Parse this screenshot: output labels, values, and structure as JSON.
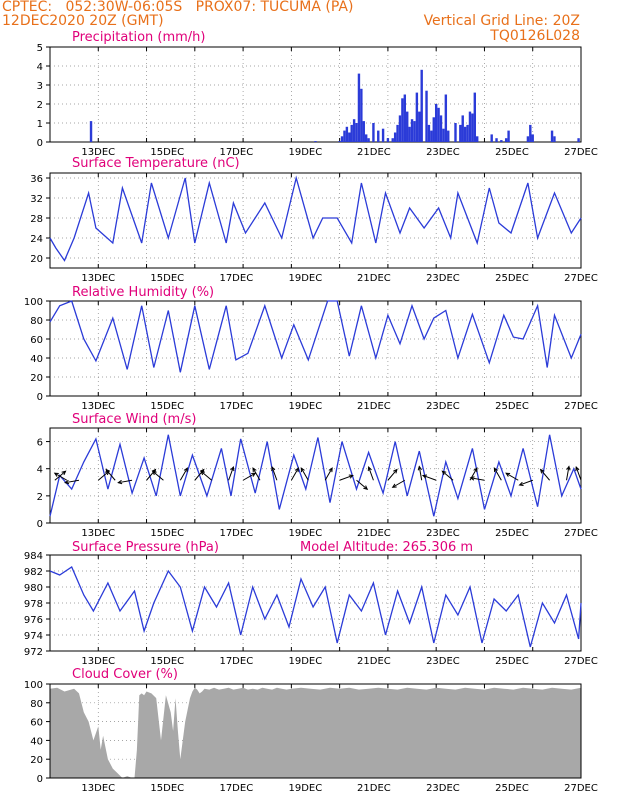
{
  "header": {
    "line1_left": "CPTEC:   052:30W-06:05S   PROX07: TUCUMA (PA)",
    "line2_left": "12DEC2020 20Z (GMT)",
    "line2_right": "Vertical Grid Line: 20Z",
    "line3_right": "TQ0126L028"
  },
  "x_tick_labels": [
    "13DEC",
    "15DEC",
    "17DEC",
    "19DEC",
    "21DEC",
    "23DEC",
    "25DEC",
    "27DEC"
  ],
  "colors": {
    "header": "#e8701a",
    "panel_title": "#e0007a",
    "series": "#2b3bd8",
    "cloud": "#a8a8a8",
    "wind_arrow": "#000000"
  },
  "chart_data": [
    {
      "id": "precip",
      "type": "bar",
      "title": "Precipitation (mm/h)",
      "ylim": [
        0,
        5
      ],
      "yticks": [
        0,
        1,
        2,
        3,
        4,
        5
      ],
      "grid": true,
      "x": [
        0.85,
        5.5,
        6.0,
        6.05,
        6.1,
        6.15,
        6.2,
        6.25,
        6.3,
        6.35,
        6.4,
        6.45,
        6.5,
        6.55,
        6.6,
        6.7,
        6.8,
        6.9,
        7.0,
        7.1,
        7.15,
        7.2,
        7.25,
        7.3,
        7.35,
        7.4,
        7.45,
        7.5,
        7.55,
        7.6,
        7.65,
        7.7,
        7.8,
        7.85,
        7.9,
        7.95,
        8.0,
        8.05,
        8.1,
        8.15,
        8.2,
        8.25,
        8.4,
        8.5,
        8.55,
        8.6,
        8.65,
        8.7,
        8.75,
        8.8,
        8.85,
        9.15,
        9.25,
        9.35,
        9.45,
        9.5,
        9.9,
        9.95,
        10.0,
        10.4,
        10.45,
        10.95
      ],
      "values": [
        1.1,
        0.05,
        0.05,
        0.3,
        0.6,
        0.8,
        0.5,
        0.9,
        1.2,
        1.0,
        3.6,
        2.8,
        1.1,
        0.4,
        0.2,
        1.0,
        0.6,
        0.7,
        0.2,
        0.2,
        0.5,
        0.9,
        1.4,
        2.3,
        2.5,
        1.6,
        0.8,
        1.2,
        1.1,
        2.6,
        1.6,
        3.8,
        2.7,
        0.9,
        0.6,
        1.3,
        2.0,
        1.8,
        1.4,
        0.7,
        2.5,
        0.6,
        1.0,
        0.9,
        1.4,
        0.8,
        0.9,
        1.6,
        1.5,
        2.6,
        0.3,
        0.4,
        0.2,
        0.1,
        0.2,
        0.6,
        0.3,
        0.9,
        0.4,
        0.6,
        0.3,
        0.2
      ]
    },
    {
      "id": "temp",
      "type": "line",
      "title": "Surface Temperature (nC)",
      "ylim": [
        18,
        37
      ],
      "yticks": [
        20,
        24,
        28,
        32,
        36
      ],
      "grid": true,
      "x": [
        0,
        0.12,
        0.3,
        0.5,
        0.8,
        0.95,
        1.3,
        1.5,
        1.9,
        2.1,
        2.45,
        2.8,
        3.0,
        3.3,
        3.65,
        3.8,
        4.05,
        4.45,
        4.8,
        5.1,
        5.45,
        5.65,
        5.95,
        6.25,
        6.45,
        6.75,
        6.95,
        7.25,
        7.45,
        7.75,
        8.05,
        8.3,
        8.45,
        8.85,
        9.1,
        9.3,
        9.55,
        9.9,
        10.1,
        10.45,
        10.8,
        11.0
      ],
      "values": [
        24,
        22,
        19.5,
        24,
        33,
        26,
        23,
        34,
        23,
        35,
        24,
        36,
        23,
        35,
        23,
        31,
        25,
        31,
        24,
        36,
        24,
        28,
        28,
        23,
        35,
        23,
        33,
        25,
        30,
        26,
        30,
        24,
        33,
        23,
        34,
        27,
        25,
        35,
        24,
        33,
        25,
        28
      ]
    },
    {
      "id": "rh",
      "type": "line",
      "title": "Relative Humidity (%)",
      "ylim": [
        0,
        100
      ],
      "yticks": [
        0,
        20,
        40,
        60,
        80,
        100
      ],
      "grid": true,
      "x": [
        0,
        0.2,
        0.45,
        0.7,
        0.95,
        1.3,
        1.6,
        1.9,
        2.15,
        2.45,
        2.7,
        3.0,
        3.3,
        3.65,
        3.85,
        4.1,
        4.45,
        4.8,
        5.05,
        5.35,
        5.75,
        5.95,
        6.2,
        6.45,
        6.75,
        7.0,
        7.25,
        7.5,
        7.75,
        7.95,
        8.2,
        8.45,
        8.75,
        9.1,
        9.4,
        9.6,
        9.8,
        10.1,
        10.3,
        10.45,
        10.8,
        11.0
      ],
      "values": [
        78,
        95,
        100,
        60,
        37,
        82,
        28,
        95,
        30,
        90,
        25,
        95,
        28,
        95,
        38,
        45,
        95,
        40,
        75,
        38,
        100,
        100,
        42,
        95,
        40,
        85,
        55,
        95,
        60,
        82,
        90,
        40,
        86,
        35,
        85,
        62,
        60,
        95,
        30,
        85,
        40,
        65
      ]
    },
    {
      "id": "wind",
      "type": "line",
      "title": "Surface Wind (m/s)",
      "ylim": [
        0,
        7
      ],
      "yticks": [
        0,
        2,
        4,
        6
      ],
      "grid": true,
      "x": [
        0,
        0.2,
        0.45,
        0.7,
        0.95,
        1.2,
        1.45,
        1.7,
        1.95,
        2.2,
        2.45,
        2.7,
        2.95,
        3.25,
        3.55,
        3.75,
        3.95,
        4.25,
        4.5,
        4.75,
        5.05,
        5.3,
        5.55,
        5.8,
        6.05,
        6.35,
        6.6,
        6.9,
        7.15,
        7.4,
        7.65,
        7.95,
        8.2,
        8.45,
        8.75,
        9.0,
        9.3,
        9.55,
        9.8,
        10.1,
        10.35,
        10.6,
        10.85,
        11.0
      ],
      "values": [
        0.5,
        3.5,
        2.5,
        4.5,
        6.2,
        2.5,
        5.8,
        2.2,
        4.8,
        2.0,
        6.5,
        2.0,
        5.0,
        2.0,
        5.5,
        2.0,
        6.2,
        2.2,
        6.0,
        1.0,
        5.0,
        2.5,
        6.3,
        1.5,
        6.0,
        2.5,
        5.2,
        2.2,
        6.0,
        2.0,
        5.3,
        0.5,
        4.5,
        1.8,
        5.5,
        1.0,
        4.5,
        2.0,
        5.5,
        1.2,
        6.5,
        2.0,
        4.0,
        2.5
      ],
      "arrows": {
        "x": [
          0.1,
          0.35,
          0.6,
          1.0,
          1.35,
          1.7,
          2.0,
          2.35,
          2.7,
          3.0,
          3.35,
          3.7,
          4.0,
          4.35,
          4.7,
          5.0,
          5.35,
          5.7,
          6.0,
          6.35,
          6.7,
          7.0,
          7.35,
          7.7,
          8.0,
          8.35,
          8.7,
          9.0,
          9.35,
          9.7,
          10.0,
          10.35,
          10.7,
          11.0
        ],
        "ang": [
          -40,
          -150,
          170,
          -40,
          -130,
          170,
          -50,
          -140,
          -60,
          -50,
          -140,
          -70,
          -30,
          -120,
          -110,
          -60,
          -120,
          -60,
          -20,
          40,
          -110,
          -50,
          150,
          -100,
          -160,
          -140,
          -60,
          -170,
          -120,
          -150,
          160,
          -130,
          -80,
          -110
        ]
      }
    },
    {
      "id": "pressure",
      "type": "line",
      "title": "Surface Pressure (hPa)",
      "annotation": "Model Altitude: 265.306 m",
      "ylim": [
        972,
        984
      ],
      "yticks": [
        972,
        974,
        976,
        978,
        980,
        982,
        984
      ],
      "grid": true,
      "x": [
        0,
        0.2,
        0.45,
        0.7,
        0.9,
        1.2,
        1.45,
        1.75,
        1.95,
        2.15,
        2.45,
        2.7,
        2.95,
        3.2,
        3.45,
        3.7,
        3.95,
        4.2,
        4.45,
        4.7,
        4.95,
        5.2,
        5.45,
        5.7,
        5.95,
        6.2,
        6.45,
        6.7,
        6.95,
        7.2,
        7.45,
        7.7,
        7.95,
        8.2,
        8.45,
        8.7,
        8.95,
        9.2,
        9.45,
        9.7,
        9.95,
        10.2,
        10.45,
        10.7,
        10.95,
        11.0
      ],
      "values": [
        982,
        981.5,
        982.5,
        979,
        977,
        980.5,
        977,
        979.5,
        974.5,
        978,
        982,
        980,
        974.5,
        980,
        977.5,
        980.5,
        974,
        980,
        976,
        979,
        975,
        981,
        977.5,
        980,
        973,
        979,
        977,
        980.5,
        974,
        979.5,
        975.5,
        980,
        973,
        979,
        976.5,
        980,
        973,
        978.5,
        977,
        979,
        972.5,
        978,
        975.5,
        979,
        973.5,
        978
      ]
    },
    {
      "id": "cloud",
      "type": "area",
      "title": "Cloud Cover (%)",
      "ylim": [
        0,
        100
      ],
      "yticks": [
        0,
        20,
        40,
        60,
        80,
        100
      ],
      "grid": true,
      "x": [
        0,
        0.15,
        0.3,
        0.5,
        0.6,
        0.7,
        0.8,
        0.9,
        1.0,
        1.05,
        1.1,
        1.2,
        1.3,
        1.4,
        1.5,
        1.6,
        1.7,
        1.75,
        1.8,
        1.85,
        1.9,
        1.95,
        2.0,
        2.1,
        2.2,
        2.3,
        2.4,
        2.5,
        2.55,
        2.6,
        2.65,
        2.7,
        2.8,
        2.9,
        2.95,
        3.0,
        3.05,
        3.1,
        3.15,
        3.2,
        3.3,
        3.4,
        3.45,
        3.5,
        3.6,
        3.7,
        3.8,
        3.9,
        4.0,
        4.1,
        4.2,
        4.3,
        4.4,
        4.5,
        4.6,
        4.7,
        4.8,
        4.9,
        5.0,
        5.2,
        5.4,
        5.6,
        5.8,
        6.0,
        6.2,
        6.4,
        6.6,
        6.8,
        7.0,
        7.2,
        7.4,
        7.6,
        7.8,
        8.0,
        8.2,
        8.4,
        8.6,
        8.8,
        9.0,
        9.2,
        9.4,
        9.6,
        9.8,
        10.0,
        10.2,
        10.4,
        10.6,
        10.8,
        11.0
      ],
      "values": [
        95,
        96,
        92,
        95,
        90,
        70,
        60,
        40,
        55,
        30,
        45,
        20,
        10,
        5,
        0,
        2,
        0,
        0,
        30,
        88,
        90,
        88,
        92,
        90,
        85,
        40,
        88,
        70,
        50,
        85,
        50,
        20,
        60,
        85,
        92,
        96,
        94,
        90,
        92,
        95,
        94,
        96,
        95,
        94,
        95,
        96,
        94,
        95,
        96,
        94,
        95,
        94,
        96,
        95,
        94,
        96,
        95,
        94,
        95,
        96,
        95,
        94,
        96,
        95,
        96,
        94,
        95,
        96,
        95,
        94,
        96,
        95,
        94,
        96,
        95,
        94,
        96,
        95,
        94,
        96,
        95,
        94,
        96,
        95,
        94,
        96,
        95,
        94,
        96
      ]
    }
  ],
  "panel_titles": {
    "precip": "Precipitation (mm/h)",
    "temp": "Surface Temperature (nC)",
    "rh": "Relative Humidity (%)",
    "wind": "Surface Wind (m/s)",
    "pressure": "Surface Pressure (hPa)",
    "pressure_note": "Model Altitude: 265.306 m",
    "cloud": "Cloud Cover (%)"
  }
}
